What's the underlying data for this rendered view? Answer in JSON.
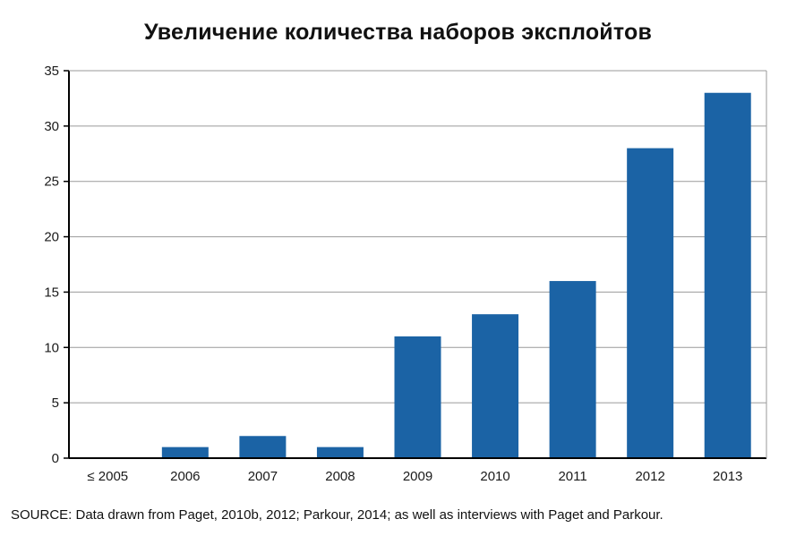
{
  "chart_data": {
    "type": "bar",
    "title": "Увеличение количества наборов эксплойтов",
    "categories": [
      "≤ 2005",
      "2006",
      "2007",
      "2008",
      "2009",
      "2010",
      "2011",
      "2012",
      "2013"
    ],
    "values": [
      0,
      1,
      2,
      1,
      11,
      13,
      16,
      28,
      33
    ],
    "xlabel": "",
    "ylabel": "",
    "ylim": [
      0,
      35
    ],
    "yticks": [
      0,
      5,
      10,
      15,
      20,
      25,
      30,
      35
    ],
    "grid": true,
    "legend": "none",
    "bar_color": "#1b63a5",
    "grid_color": "#9a9a9a",
    "axis_color": "#000000"
  },
  "source": "SOURCE: Data drawn from Paget, 2010b, 2012; Parkour, 2014; as well as interviews with Paget and Parkour."
}
